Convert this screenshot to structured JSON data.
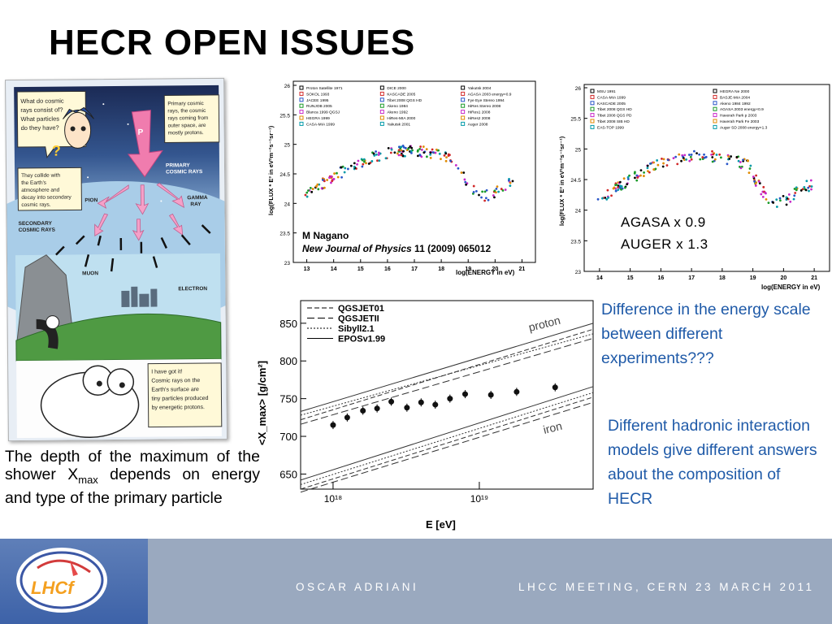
{
  "slide": {
    "title": "HECR OPEN ISSUES",
    "caption_left": {
      "pre": "The depth of the maximum of the shower X",
      "sub": "max",
      "post": " depends on energy and type of the primary particle"
    },
    "note_energy_scale": "Difference in the energy scale between different experiments???",
    "note_hadronic": "Different hadronic interaction models give different answers about the composition of HECR",
    "scale_agasa": "AGASA x 0.9",
    "scale_auger": "AUGER x 1.3",
    "reference": {
      "author": "M Nagano",
      "journal": "New Journal of Physics",
      "details": " 11 (2009) 065012"
    }
  },
  "comic": {
    "bubble_question": [
      "What do cosmic",
      "rays consist of?",
      "What particles",
      "do they have?"
    ],
    "bubble_primary": [
      "Primary cosmic",
      "rays, the cosmic",
      "rays coming from",
      "outer space, are",
      "mostly protons."
    ],
    "bubble_collide": [
      "They collide with",
      "the Earth's",
      "atmosphere and",
      "decay into secondary",
      "cosmic rays."
    ],
    "label_p": "P",
    "label_primary": [
      "PRIMARY",
      "COSMIC RAYS"
    ],
    "label_pion": "PION",
    "label_gamma": [
      "GAMMA",
      "RAY"
    ],
    "label_secondary": [
      "SECONDARY",
      "COSMIC RAYS"
    ],
    "label_muon": "MUON",
    "label_electron": "ELECTRON",
    "bubble_got_it": [
      "I have got it!",
      "Cosmic rays on the",
      "Earth's surface are",
      "tiny particles produced",
      "by energetic protons."
    ]
  },
  "spectrum_left": {
    "ylabel": "log(FLUX * E³ in eV²m⁻²s⁻¹sr⁻¹)",
    "xlabel": "log(ENERGY in eV)",
    "yticks": [
      "26",
      "25.5",
      "25",
      "24.5",
      "24",
      "23.5",
      "23"
    ],
    "xticks": [
      "13",
      "14",
      "15",
      "16",
      "17",
      "18",
      "19",
      "20",
      "21"
    ],
    "legend": [
      "Proton Satellite 1971",
      "SOKOL 1993",
      "JACEE 1995",
      "RUNJOB 2005",
      "Blanca 1999 QGSJ",
      "HEGRA 1999",
      "CASA-MIA 1999",
      "DICE 2000",
      "KASCADE 2005",
      "Tibet 2008 QGS HD",
      "Akeno 1984",
      "Akeno 1992",
      "HiRes-MIA 2000",
      "Yakutsk 2001",
      "Yakutsk 2004",
      "AGASA 2003 energy×0.9",
      "Fye Eye Stereo 1994",
      "HiRes Stereo 2008",
      "HiRes1 2008",
      "HiRes2 2008",
      "Auger 2008"
    ]
  },
  "spectrum_right": {
    "ylabel": "log(FLUX * E³ in eV²m⁻²s⁻¹sr⁻¹)",
    "xlabel": "log(ENERGY in eV)",
    "yticks": [
      "26",
      "25.5",
      "25",
      "24.5",
      "24",
      "23.5",
      "23"
    ],
    "xticks": [
      "14",
      "15",
      "16",
      "17",
      "18",
      "19",
      "20",
      "21"
    ],
    "legend": [
      "MSU 1991",
      "CASA-MIA 1999",
      "KASCADE 2005",
      "Tibet 2008 QGS HD",
      "Tibet 2008 QGS PD",
      "Tibet 2008 SIB HD",
      "EAS-TOP 1999",
      "HEGRA Ne 2000",
      "BASJE-MIA 2004",
      "Akeno 1984 1992",
      "AGASA 2003 energy×0.9",
      "Haverah Park p 2003",
      "Haverah Park Fe 2003",
      "Auger SD 2008 energy×1.3"
    ]
  },
  "chart_data": {
    "type": "scatter",
    "xlabel": "E [eV]",
    "ylabel": "<X_max> [g/cm²]",
    "x_scale": "log",
    "xlim": [
      6e+17,
      6e+19
    ],
    "ylim": [
      630,
      880
    ],
    "yticks": [
      650,
      700,
      750,
      800,
      850
    ],
    "xticks": [
      "10¹⁸",
      "10¹⁹"
    ],
    "series": [
      {
        "name": "QGSJET01",
        "style": "dashed"
      },
      {
        "name": "QGSJETII",
        "style": "dashed"
      },
      {
        "name": "Sibyll2.1",
        "style": "dotted"
      },
      {
        "name": "EPOSv1.99",
        "style": "solid"
      }
    ],
    "band_labels": [
      "proton",
      "iron"
    ],
    "proton_lines": [
      [
        6e+17,
        722,
        6e+19,
        842
      ],
      [
        6e+17,
        716,
        6e+19,
        830
      ],
      [
        6e+17,
        728,
        6e+19,
        836
      ],
      [
        6e+17,
        733,
        6e+19,
        850
      ]
    ],
    "iron_lines": [
      [
        6e+17,
        630,
        6e+19,
        752
      ],
      [
        6e+17,
        626,
        6e+19,
        745
      ],
      [
        6e+17,
        636,
        6e+19,
        758
      ],
      [
        6e+17,
        642,
        6e+19,
        766
      ]
    ],
    "points": [
      {
        "x": 1e+18,
        "y": 715
      },
      {
        "x": 1.25e+18,
        "y": 725
      },
      {
        "x": 1.6e+18,
        "y": 734
      },
      {
        "x": 2e+18,
        "y": 737
      },
      {
        "x": 2.5e+18,
        "y": 746
      },
      {
        "x": 3.2e+18,
        "y": 738
      },
      {
        "x": 4e+18,
        "y": 745
      },
      {
        "x": 5e+18,
        "y": 742
      },
      {
        "x": 6.3e+18,
        "y": 750
      },
      {
        "x": 8e+18,
        "y": 756
      },
      {
        "x": 1.2e+19,
        "y": 755
      },
      {
        "x": 1.8e+19,
        "y": 759
      },
      {
        "x": 3.3e+19,
        "y": 765
      }
    ]
  },
  "footer": {
    "author": "OSCAR ADRIANI",
    "meeting": "LHCC MEETING, CERN 23 MARCH 2011",
    "logo_text": "LHCf"
  }
}
